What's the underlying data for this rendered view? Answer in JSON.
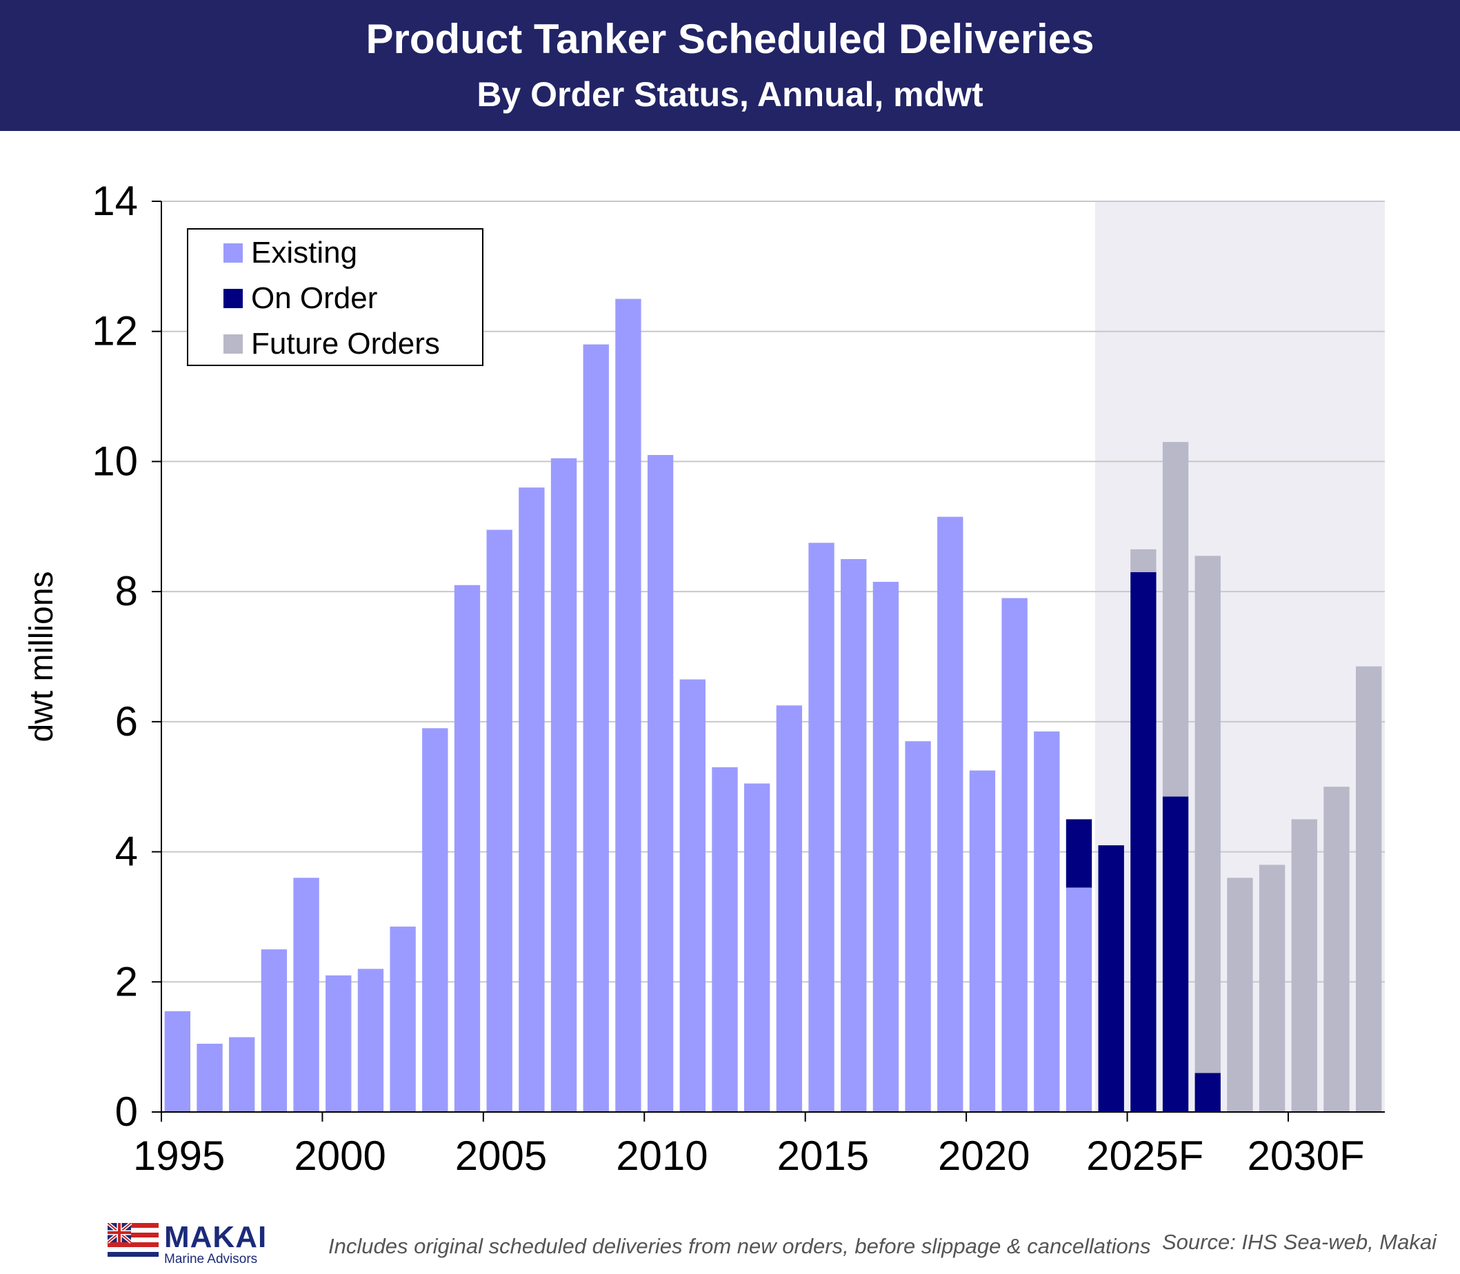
{
  "header": {
    "title": "Product Tanker Scheduled Deliveries",
    "subtitle": "By Order Status, Annual, mdwt"
  },
  "footer": {
    "note": "Includes original  scheduled deliveries from new orders, before slippage & cancellations",
    "source": "Source: IHS Sea-web, Makai"
  },
  "logo": {
    "name": "MAKAI",
    "tagline": "Marine Advisors"
  },
  "colors": {
    "header_bg": "#222466",
    "existing": "#9b9bff",
    "on_order": "#000080",
    "future_orders": "#b8b8c8",
    "forecast_shade": "#ededf3"
  },
  "chart_data": {
    "type": "bar",
    "stacked": true,
    "title": "Product Tanker Scheduled Deliveries",
    "subtitle": "By Order Status, Annual, mdwt",
    "ylabel": "dwt millions",
    "xlabel": "",
    "ylim": [
      0,
      14
    ],
    "yticks": [
      0,
      2,
      4,
      6,
      8,
      10,
      12,
      14
    ],
    "x_tick_labels": [
      "1995",
      "2000",
      "2005",
      "2010",
      "2015",
      "2020",
      "2025F",
      "2030F"
    ],
    "forecast_shading_from": 2024,
    "grid": true,
    "legend_position": "top-left",
    "categories": [
      1995,
      1996,
      1997,
      1998,
      1999,
      2000,
      2001,
      2002,
      2003,
      2004,
      2005,
      2006,
      2007,
      2008,
      2009,
      2010,
      2011,
      2012,
      2013,
      2014,
      2015,
      2016,
      2017,
      2018,
      2019,
      2020,
      2021,
      2022,
      2023,
      2024,
      2025,
      2026,
      2027,
      2028,
      2029,
      2030,
      2031,
      2032
    ],
    "series": [
      {
        "name": "Existing",
        "color": "#9b9bff",
        "values": [
          1.55,
          1.05,
          1.15,
          2.5,
          3.6,
          2.1,
          2.2,
          2.85,
          5.9,
          8.1,
          8.95,
          9.6,
          10.05,
          11.8,
          12.5,
          10.1,
          6.65,
          5.3,
          5.05,
          6.25,
          8.75,
          8.5,
          8.15,
          5.7,
          9.15,
          5.25,
          7.9,
          5.85,
          3.45,
          0,
          0,
          0,
          0,
          0,
          0,
          0,
          0,
          0
        ]
      },
      {
        "name": "On Order",
        "color": "#000080",
        "values": [
          0,
          0,
          0,
          0,
          0,
          0,
          0,
          0,
          0,
          0,
          0,
          0,
          0,
          0,
          0,
          0,
          0,
          0,
          0,
          0,
          0,
          0,
          0,
          0,
          0,
          0,
          0,
          0,
          1.05,
          4.1,
          8.3,
          4.85,
          0.6,
          0,
          0,
          0,
          0,
          0
        ]
      },
      {
        "name": "Future Orders",
        "color": "#b8b8c8",
        "values": [
          0,
          0,
          0,
          0,
          0,
          0,
          0,
          0,
          0,
          0,
          0,
          0,
          0,
          0,
          0,
          0,
          0,
          0,
          0,
          0,
          0,
          0,
          0,
          0,
          0,
          0,
          0,
          0,
          0,
          0,
          0.35,
          5.45,
          7.95,
          3.6,
          3.8,
          4.5,
          5.0,
          6.85
        ]
      }
    ]
  }
}
